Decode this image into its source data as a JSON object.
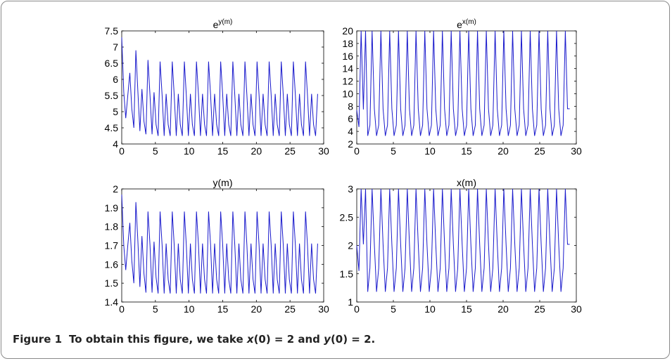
{
  "caption": {
    "label": "Figure 1",
    "prefix": "To obtain this figure, we take ",
    "x_var": "x",
    "x_cond": "(0) = 2 and ",
    "y_var": "y",
    "y_cond": "(0) = 2."
  },
  "colors": {
    "line": "#1a1acc",
    "axis": "#000000"
  },
  "chart_data": [
    {
      "type": "line",
      "title": "e",
      "title_sup": "y(m)",
      "xlim": [
        0,
        30
      ],
      "ylim": [
        4,
        7.5
      ],
      "xticks": [
        0,
        5,
        10,
        15,
        20,
        25,
        30
      ],
      "yticks": [
        4,
        4.5,
        5,
        5.5,
        6,
        6.5,
        7,
        7.5
      ],
      "tick_labels_x": [
        "0",
        "5",
        "10",
        "15",
        "20",
        "25",
        "30"
      ],
      "tick_labels_y": [
        "4",
        "4.5",
        "5",
        "5.5",
        "6",
        "6.5",
        "7",
        "7.5"
      ],
      "grid": false,
      "series": [
        {
          "x": [
            0,
            0.3,
            0.6,
            0.9,
            1.2,
            1.5,
            1.8,
            2.1,
            2.4,
            2.7,
            3.0,
            3.3,
            3.6,
            3.9,
            4.2,
            4.5,
            4.8,
            5.1,
            5.4,
            5.7,
            6.0,
            6.3,
            6.6,
            6.9,
            7.2,
            7.5,
            7.8,
            8.1,
            8.4,
            8.7,
            9.0,
            9.3,
            9.6,
            9.9,
            10.2,
            10.5,
            10.8,
            11.1,
            11.4,
            11.7,
            12.0,
            12.3,
            12.6,
            12.9,
            13.2,
            13.5,
            13.8,
            14.1,
            14.4,
            14.7,
            15.0,
            15.3,
            15.6,
            15.9,
            16.2,
            16.5,
            16.8,
            17.1,
            17.4,
            17.7,
            18.0,
            18.3,
            18.6,
            18.9,
            19.2,
            19.5,
            19.8,
            20.1,
            20.4,
            20.7,
            21.0,
            21.3,
            21.6,
            21.9,
            22.2,
            22.5,
            22.8,
            23.1,
            23.4,
            23.7,
            24.0,
            24.3,
            24.6,
            24.9,
            25.2,
            25.5,
            25.8,
            26.1,
            26.4,
            26.7,
            27.0,
            27.3,
            27.6,
            27.9,
            28.2,
            28.5,
            28.8,
            29.1
          ],
          "y": [
            7.3,
            5.6,
            4.8,
            5.5,
            6.2,
            5.1,
            4.5,
            6.9,
            5.6,
            4.4,
            5.7,
            4.7,
            4.3,
            6.6,
            5.5,
            4.3,
            5.6,
            4.6,
            4.25,
            6.55,
            5.5,
            4.25,
            5.55,
            4.6,
            4.25,
            6.55,
            5.5,
            4.25,
            5.55,
            4.6,
            4.25,
            6.55,
            5.5,
            4.25,
            5.55,
            4.6,
            4.25,
            6.55,
            5.5,
            4.25,
            5.55,
            4.6,
            4.25,
            6.55,
            5.5,
            4.25,
            5.55,
            4.6,
            4.25,
            6.55,
            5.5,
            4.25,
            5.55,
            4.6,
            4.25,
            6.55,
            5.5,
            4.25,
            5.55,
            4.6,
            4.25,
            6.55,
            5.5,
            4.25,
            5.55,
            4.6,
            4.25,
            6.55,
            5.5,
            4.25,
            5.55,
            4.6,
            4.25,
            6.55,
            5.5,
            4.25,
            5.55,
            4.6,
            4.25,
            6.55,
            5.5,
            4.25,
            5.55,
            4.6,
            4.25,
            6.55,
            5.5,
            4.25,
            5.55,
            4.6,
            4.25,
            6.55,
            5.5,
            4.25,
            5.55,
            4.6,
            4.25,
            5.55
          ]
        }
      ]
    },
    {
      "type": "line",
      "title": "e",
      "title_sup": "x(m)",
      "xlim": [
        0,
        30
      ],
      "ylim": [
        2,
        20
      ],
      "xticks": [
        0,
        5,
        10,
        15,
        20,
        25,
        30
      ],
      "yticks": [
        2,
        4,
        6,
        8,
        10,
        12,
        14,
        16,
        18,
        20
      ],
      "tick_labels_x": [
        "0",
        "5",
        "10",
        "15",
        "20",
        "25",
        "30"
      ],
      "tick_labels_y": [
        "2",
        "4",
        "6",
        "8",
        "10",
        "12",
        "14",
        "16",
        "18",
        "20"
      ],
      "grid": false,
      "series": [
        {
          "x": [
            0,
            0.3,
            0.6,
            0.9,
            1.2,
            1.5,
            1.8,
            2.1,
            2.4,
            2.7,
            3.0,
            3.3,
            3.6,
            3.9,
            4.2,
            4.5,
            4.8,
            5.1,
            5.4,
            5.7,
            6.0,
            6.3,
            6.6,
            6.9,
            7.2,
            7.5,
            7.8,
            8.1,
            8.4,
            8.7,
            9.0,
            9.3,
            9.6,
            9.9,
            10.2,
            10.5,
            10.8,
            11.1,
            11.4,
            11.7,
            12.0,
            12.3,
            12.6,
            12.9,
            13.2,
            13.5,
            13.8,
            14.1,
            14.4,
            14.7,
            15.0,
            15.3,
            15.6,
            15.9,
            16.2,
            16.5,
            16.8,
            17.1,
            17.4,
            17.7,
            18.0,
            18.3,
            18.6,
            18.9,
            19.2,
            19.5,
            19.8,
            20.1,
            20.4,
            20.7,
            21.0,
            21.3,
            21.6,
            21.9,
            22.2,
            22.5,
            22.8,
            23.1,
            23.4,
            23.7,
            24.0,
            24.3,
            24.6,
            24.9,
            25.2,
            25.5,
            25.8,
            26.1,
            26.4,
            26.7,
            27.0,
            27.3,
            27.6,
            27.9,
            28.2,
            28.5,
            28.8,
            29.1
          ],
          "y": [
            7.4,
            4.7,
            20,
            7.5,
            20,
            3.3,
            5,
            20,
            7.6,
            3.3,
            5,
            20,
            7.6,
            3.3,
            5,
            20,
            7.6,
            3.3,
            5,
            20,
            7.6,
            3.3,
            5,
            20,
            7.6,
            3.3,
            5,
            20,
            7.6,
            3.3,
            5,
            20,
            7.6,
            3.3,
            5,
            20,
            7.6,
            3.3,
            5,
            20,
            7.6,
            3.3,
            5,
            20,
            7.6,
            3.3,
            5,
            20,
            7.6,
            3.3,
            5,
            20,
            7.6,
            3.3,
            5,
            20,
            7.6,
            3.3,
            5,
            20,
            7.6,
            3.3,
            5,
            20,
            7.6,
            3.3,
            5,
            20,
            7.6,
            3.3,
            5,
            20,
            7.6,
            3.3,
            5,
            20,
            7.6,
            3.3,
            5,
            20,
            7.6,
            3.3,
            5,
            20,
            7.6,
            3.3,
            5,
            20,
            7.6,
            3.3,
            5,
            20,
            7.6,
            3.3,
            5,
            20,
            7.6,
            7.6
          ]
        }
      ]
    },
    {
      "type": "line",
      "title": "y(m)",
      "title_sup": "",
      "xlim": [
        0,
        30
      ],
      "ylim": [
        1.4,
        2
      ],
      "xticks": [
        0,
        5,
        10,
        15,
        20,
        25,
        30
      ],
      "yticks": [
        1.4,
        1.5,
        1.6,
        1.7,
        1.8,
        1.9,
        2
      ],
      "tick_labels_x": [
        "0",
        "5",
        "10",
        "15",
        "20",
        "25",
        "30"
      ],
      "tick_labels_y": [
        "1.4",
        "1.5",
        "1.6",
        "1.7",
        "1.8",
        "1.9",
        "2"
      ],
      "grid": false,
      "series": [
        {
          "x": [
            0,
            0.3,
            0.6,
            0.9,
            1.2,
            1.5,
            1.8,
            2.1,
            2.4,
            2.7,
            3.0,
            3.3,
            3.6,
            3.9,
            4.2,
            4.5,
            4.8,
            5.1,
            5.4,
            5.7,
            6.0,
            6.3,
            6.6,
            6.9,
            7.2,
            7.5,
            7.8,
            8.1,
            8.4,
            8.7,
            9.0,
            9.3,
            9.6,
            9.9,
            10.2,
            10.5,
            10.8,
            11.1,
            11.4,
            11.7,
            12.0,
            12.3,
            12.6,
            12.9,
            13.2,
            13.5,
            13.8,
            14.1,
            14.4,
            14.7,
            15.0,
            15.3,
            15.6,
            15.9,
            16.2,
            16.5,
            16.8,
            17.1,
            17.4,
            17.7,
            18.0,
            18.3,
            18.6,
            18.9,
            19.2,
            19.5,
            19.8,
            20.1,
            20.4,
            20.7,
            21.0,
            21.3,
            21.6,
            21.9,
            22.2,
            22.5,
            22.8,
            23.1,
            23.4,
            23.7,
            24.0,
            24.3,
            24.6,
            24.9,
            25.2,
            25.5,
            25.8,
            26.1,
            26.4,
            26.7,
            27.0,
            27.3,
            27.6,
            27.9,
            28.2,
            28.5,
            28.8,
            29.1
          ],
          "y": [
            1.97,
            1.7,
            1.57,
            1.7,
            1.82,
            1.62,
            1.5,
            1.93,
            1.72,
            1.48,
            1.75,
            1.55,
            1.45,
            1.88,
            1.7,
            1.45,
            1.72,
            1.53,
            1.445,
            1.88,
            1.7,
            1.445,
            1.71,
            1.52,
            1.445,
            1.88,
            1.7,
            1.445,
            1.71,
            1.52,
            1.445,
            1.88,
            1.7,
            1.445,
            1.71,
            1.52,
            1.445,
            1.88,
            1.7,
            1.445,
            1.71,
            1.52,
            1.445,
            1.88,
            1.7,
            1.445,
            1.71,
            1.52,
            1.445,
            1.88,
            1.7,
            1.445,
            1.71,
            1.52,
            1.445,
            1.88,
            1.7,
            1.445,
            1.71,
            1.52,
            1.445,
            1.88,
            1.7,
            1.445,
            1.71,
            1.52,
            1.445,
            1.88,
            1.7,
            1.445,
            1.71,
            1.52,
            1.445,
            1.88,
            1.7,
            1.445,
            1.71,
            1.52,
            1.445,
            1.88,
            1.7,
            1.445,
            1.71,
            1.52,
            1.445,
            1.88,
            1.7,
            1.445,
            1.71,
            1.52,
            1.445,
            1.88,
            1.7,
            1.445,
            1.71,
            1.52,
            1.445,
            1.71
          ]
        }
      ]
    },
    {
      "type": "line",
      "title": "x(m)",
      "title_sup": "",
      "xlim": [
        0,
        30
      ],
      "ylim": [
        1,
        3
      ],
      "xticks": [
        0,
        5,
        10,
        15,
        20,
        25,
        30
      ],
      "yticks": [
        1,
        1.5,
        2,
        2.5,
        3
      ],
      "tick_labels_x": [
        "0",
        "5",
        "10",
        "15",
        "20",
        "25",
        "30"
      ],
      "tick_labels_y": [
        "1",
        "1.5",
        "2",
        "2.5",
        "3"
      ],
      "grid": false,
      "series": [
        {
          "x": [
            0,
            0.3,
            0.6,
            0.9,
            1.2,
            1.5,
            1.8,
            2.1,
            2.4,
            2.7,
            3.0,
            3.3,
            3.6,
            3.9,
            4.2,
            4.5,
            4.8,
            5.1,
            5.4,
            5.7,
            6.0,
            6.3,
            6.6,
            6.9,
            7.2,
            7.5,
            7.8,
            8.1,
            8.4,
            8.7,
            9.0,
            9.3,
            9.6,
            9.9,
            10.2,
            10.5,
            10.8,
            11.1,
            11.4,
            11.7,
            12.0,
            12.3,
            12.6,
            12.9,
            13.2,
            13.5,
            13.8,
            14.1,
            14.4,
            14.7,
            15.0,
            15.3,
            15.6,
            15.9,
            16.2,
            16.5,
            16.8,
            17.1,
            17.4,
            17.7,
            18.0,
            18.3,
            18.6,
            18.9,
            19.2,
            19.5,
            19.8,
            20.1,
            20.4,
            20.7,
            21.0,
            21.3,
            21.6,
            21.9,
            22.2,
            22.5,
            22.8,
            23.1,
            23.4,
            23.7,
            24.0,
            24.3,
            24.6,
            24.9,
            25.2,
            25.5,
            25.8,
            26.1,
            26.4,
            26.7,
            27.0,
            27.3,
            27.6,
            27.9,
            28.2,
            28.5,
            28.8,
            29.1
          ],
          "y": [
            2.0,
            1.55,
            3,
            2.02,
            3,
            1.18,
            1.6,
            3,
            2.02,
            1.18,
            1.6,
            3,
            2.02,
            1.18,
            1.6,
            3,
            2.02,
            1.18,
            1.6,
            3,
            2.02,
            1.18,
            1.6,
            3,
            2.02,
            1.18,
            1.6,
            3,
            2.02,
            1.18,
            1.6,
            3,
            2.02,
            1.18,
            1.6,
            3,
            2.02,
            1.18,
            1.6,
            3,
            2.02,
            1.18,
            1.6,
            3,
            2.02,
            1.18,
            1.6,
            3,
            2.02,
            1.18,
            1.6,
            3,
            2.02,
            1.18,
            1.6,
            3,
            2.02,
            1.18,
            1.6,
            3,
            2.02,
            1.18,
            1.6,
            3,
            2.02,
            1.18,
            1.6,
            3,
            2.02,
            1.18,
            1.6,
            3,
            2.02,
            1.18,
            1.6,
            3,
            2.02,
            1.18,
            1.6,
            3,
            2.02,
            1.18,
            1.6,
            3,
            2.02,
            1.18,
            1.6,
            3,
            2.02,
            1.18,
            1.6,
            3,
            2.02,
            1.18,
            1.6,
            3,
            2.02,
            2.02
          ]
        }
      ]
    }
  ]
}
